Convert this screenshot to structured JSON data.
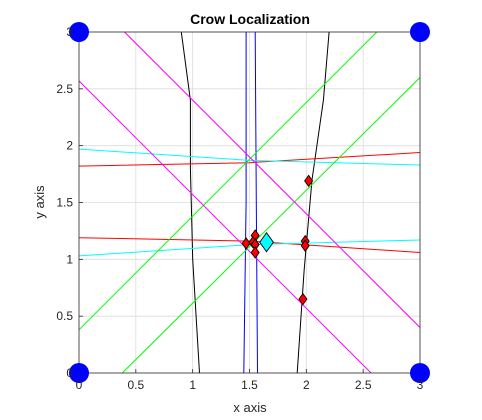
{
  "chart_data": {
    "type": "line",
    "title": "Crow Localization",
    "xlabel": "x axis",
    "ylabel": "y axis",
    "xlim": [
      0,
      3
    ],
    "ylim": [
      0,
      3
    ],
    "grid": true,
    "xticks": [
      "0",
      "0.5",
      "1",
      "1.5",
      "2",
      "2.5",
      "3"
    ],
    "yticks": [
      "0",
      "0.5",
      "1",
      "1.5",
      "2",
      "2.5",
      "3"
    ],
    "colors": {
      "blue": "#0000ff",
      "red": "#ff0000",
      "green": "#00ff00",
      "magenta": "#ff00ff",
      "cyan": "#00ffff",
      "black": "#000000",
      "marker_red": "#ff0000",
      "marker_cyan": "#00ffff"
    },
    "anchors": [
      [
        0,
        0
      ],
      [
        0,
        3
      ],
      [
        3,
        0
      ],
      [
        3,
        3
      ]
    ],
    "lines": [
      {
        "color": "blue",
        "points": [
          [
            1.45,
            0
          ],
          [
            1.47,
            1.5
          ],
          [
            1.47,
            3.0
          ]
        ]
      },
      {
        "color": "blue",
        "points": [
          [
            1.57,
            0
          ],
          [
            1.56,
            1.5
          ],
          [
            1.55,
            3.0
          ]
        ]
      },
      {
        "color": "black",
        "points": [
          [
            1.06,
            0
          ],
          [
            1.0,
            1.0
          ],
          [
            0.98,
            1.8
          ],
          [
            0.98,
            2.4
          ],
          [
            0.9,
            3.0
          ]
        ]
      },
      {
        "color": "black",
        "points": [
          [
            1.92,
            0
          ],
          [
            1.98,
            0.9
          ],
          [
            2.05,
            1.7
          ],
          [
            2.15,
            2.4
          ],
          [
            2.2,
            3.0
          ]
        ]
      },
      {
        "color": "red",
        "points": [
          [
            0,
            1.82
          ],
          [
            1.5,
            1.85
          ],
          [
            3,
            1.94
          ]
        ]
      },
      {
        "color": "red",
        "points": [
          [
            0,
            1.19
          ],
          [
            1.5,
            1.16
          ],
          [
            3,
            1.06
          ]
        ]
      },
      {
        "color": "cyan",
        "points": [
          [
            0,
            1.97
          ],
          [
            1.5,
            1.87
          ],
          [
            3,
            1.83
          ]
        ]
      },
      {
        "color": "cyan",
        "points": [
          [
            0,
            1.03
          ],
          [
            1.5,
            1.13
          ],
          [
            3,
            1.17
          ]
        ]
      },
      {
        "color": "green",
        "points": [
          [
            0,
            0.38
          ],
          [
            2.62,
            3.0
          ]
        ]
      },
      {
        "color": "green",
        "points": [
          [
            0.38,
            0
          ],
          [
            3,
            2.6
          ]
        ]
      },
      {
        "color": "magenta",
        "points": [
          [
            0,
            2.57
          ],
          [
            2.57,
            0
          ]
        ]
      },
      {
        "color": "magenta",
        "points": [
          [
            0.4,
            3.0
          ],
          [
            3,
            0.4
          ]
        ]
      }
    ],
    "markers_red": [
      [
        2.02,
        1.69
      ],
      [
        1.55,
        1.21
      ],
      [
        1.47,
        1.14
      ],
      [
        1.53,
        1.15
      ],
      [
        1.55,
        1.13
      ],
      [
        1.55,
        1.06
      ],
      [
        1.99,
        1.16
      ],
      [
        1.99,
        1.12
      ],
      [
        1.97,
        0.65
      ]
    ],
    "estimate": [
      1.65,
      1.15
    ]
  }
}
